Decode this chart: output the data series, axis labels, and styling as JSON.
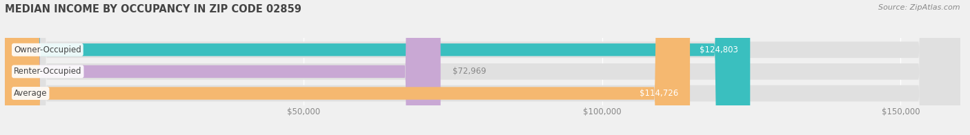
{
  "title": "MEDIAN INCOME BY OCCUPANCY IN ZIP CODE 02859",
  "source": "Source: ZipAtlas.com",
  "categories": [
    "Owner-Occupied",
    "Renter-Occupied",
    "Average"
  ],
  "values": [
    124803,
    72969,
    114726
  ],
  "bar_colors": [
    "#3abfbf",
    "#c9a8d4",
    "#f5b870"
  ],
  "bar_labels": [
    "$124,803",
    "$72,969",
    "$114,726"
  ],
  "xlim": [
    0,
    160000
  ],
  "xticks": [
    0,
    50000,
    100000,
    150000
  ],
  "xticklabels": [
    "",
    "$50,000",
    "$100,000",
    "$150,000"
  ],
  "background_color": "#f0f0f0",
  "bar_bg_color": "#e0e0e0",
  "title_fontsize": 10.5,
  "tick_fontsize": 8.5,
  "label_fontsize": 8.5,
  "category_fontsize": 8.5
}
